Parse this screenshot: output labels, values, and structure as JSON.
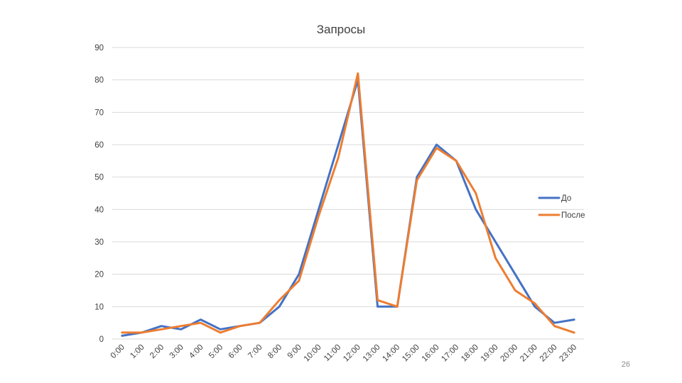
{
  "slide": {
    "page_number": "26"
  },
  "chart_data": {
    "type": "line",
    "title": "Запросы",
    "xlabel": "",
    "ylabel": "",
    "categories": [
      "0:00",
      "1:00",
      "2:00",
      "3:00",
      "4:00",
      "5:00",
      "6:00",
      "7:00",
      "8:00",
      "9:00",
      "10:00",
      "11:00",
      "12:00",
      "13:00",
      "14:00",
      "15:00",
      "16:00",
      "17:00",
      "18:00",
      "19:00",
      "20:00",
      "21:00",
      "22:00",
      "23:00"
    ],
    "ylim": [
      0,
      90
    ],
    "yticks": [
      0,
      10,
      20,
      30,
      40,
      50,
      60,
      70,
      80,
      90
    ],
    "grid": true,
    "legend_position": "right",
    "series": [
      {
        "name": "До",
        "color": "#4472C4",
        "values": [
          1,
          2,
          4,
          3,
          6,
          3,
          4,
          5,
          10,
          20,
          40,
          60,
          80,
          10,
          10,
          50,
          60,
          55,
          40,
          30,
          20,
          10,
          5,
          6
        ]
      },
      {
        "name": "После",
        "color": "#ED7D31",
        "values": [
          2,
          2,
          3,
          4,
          5,
          2,
          4,
          5,
          12,
          18,
          38,
          56,
          82,
          12,
          10,
          49,
          59,
          55,
          45,
          25,
          15,
          11,
          4,
          2
        ]
      }
    ]
  }
}
